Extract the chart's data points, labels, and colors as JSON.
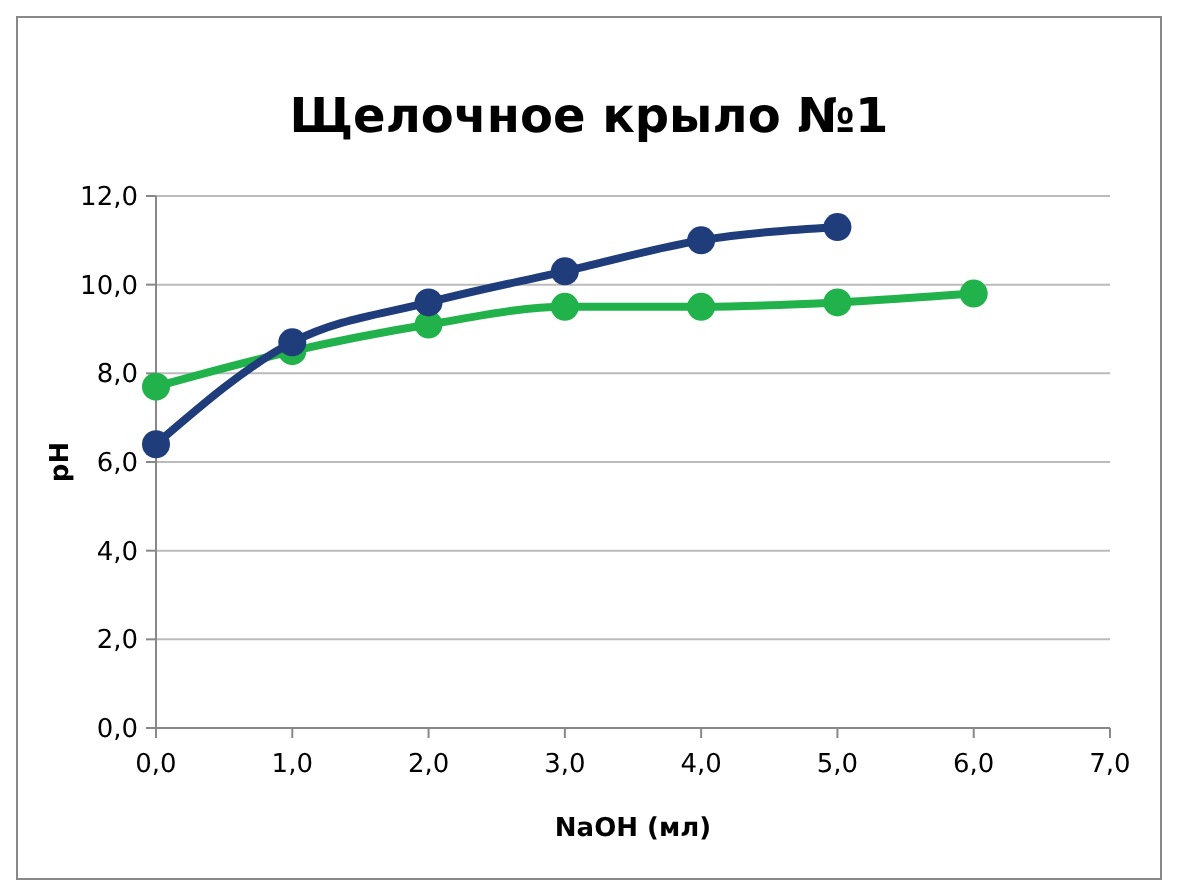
{
  "chart_data": {
    "type": "line",
    "title": "Щелочное крыло №1",
    "xlabel": "NaOH (мл)",
    "ylabel": "pH",
    "series": [
      {
        "color": "#1f3d7a",
        "x": [
          0,
          1,
          2,
          3,
          4,
          5
        ],
        "values": [
          6.4,
          8.7,
          9.6,
          10.3,
          11.0,
          11.3
        ]
      },
      {
        "color": "#22b24c",
        "x": [
          0,
          1,
          2,
          3,
          4,
          5,
          6
        ],
        "values": [
          7.7,
          8.5,
          9.1,
          9.5,
          9.5,
          9.6,
          9.8
        ]
      }
    ],
    "xlim": [
      0,
      7
    ],
    "xticks": [
      {
        "value": 0,
        "label": "0,0"
      },
      {
        "value": 1,
        "label": "1,0"
      },
      {
        "value": 2,
        "label": "2,0"
      },
      {
        "value": 3,
        "label": "3,0"
      },
      {
        "value": 4,
        "label": "4,0"
      },
      {
        "value": 5,
        "label": "5,0"
      },
      {
        "value": 6,
        "label": "6,0"
      },
      {
        "value": 7,
        "label": "7,0"
      }
    ],
    "ylim": [
      0,
      12
    ],
    "yticks": [
      {
        "value": 0,
        "label": "0,0"
      },
      {
        "value": 2,
        "label": "2,0"
      },
      {
        "value": 4,
        "label": "4,0"
      },
      {
        "value": 6,
        "label": "6,0"
      },
      {
        "value": 8,
        "label": "8,0"
      },
      {
        "value": 10,
        "label": "10,0"
      },
      {
        "value": 12,
        "label": "12,0"
      }
    ],
    "grid": "y",
    "marker": "circle",
    "line_style": "solid"
  }
}
